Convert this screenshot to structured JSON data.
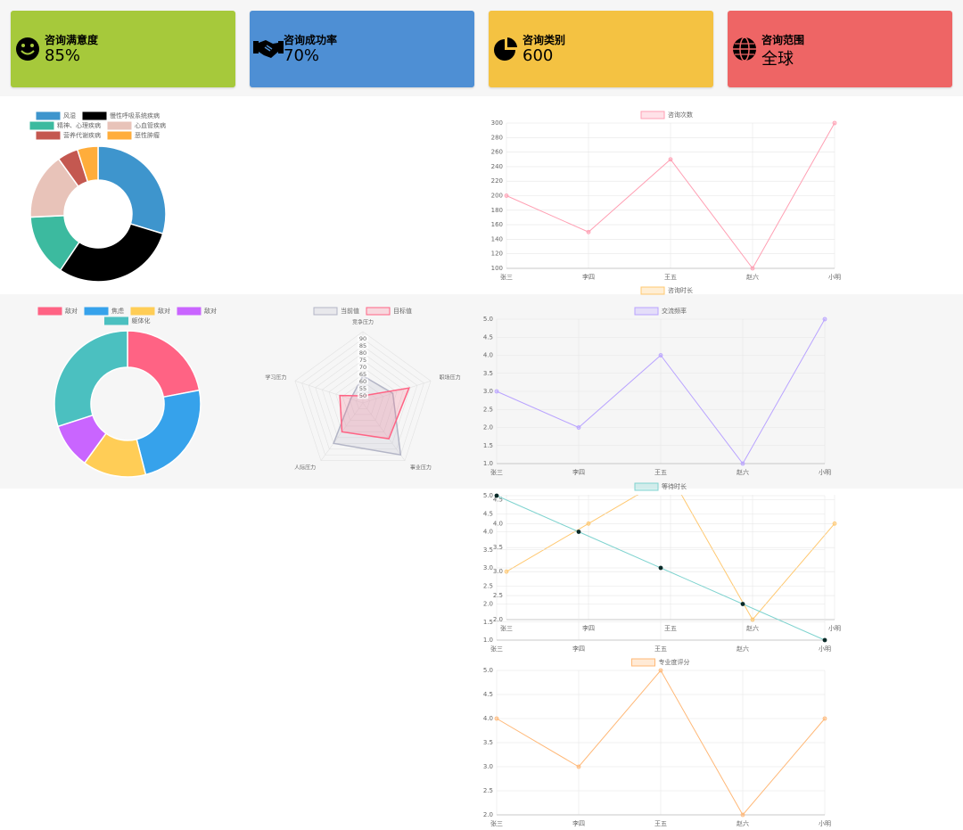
{
  "cards": [
    {
      "title": "咨询满意度",
      "value": "85%"
    },
    {
      "title": "咨询成功率",
      "value": "70%"
    },
    {
      "title": "咨询类别",
      "value": "600"
    },
    {
      "title": "咨询范围",
      "value": "全球"
    }
  ],
  "chart_data": [
    {
      "type": "donut",
      "categories": [
        "风湿",
        "慢性呼吸系统疾病",
        "精神、心理疾病",
        "心血管疾病",
        "营养代谢疾病",
        "恶性肿瘤"
      ],
      "values": [
        30,
        30,
        15,
        16,
        5,
        5
      ],
      "colors": [
        "#3e95cd",
        "#000000",
        "#3cba9f",
        "#e8c3b9",
        "#c45850",
        "#ffad3b"
      ]
    },
    {
      "type": "line",
      "categories": [
        "张三",
        "李四",
        "王五",
        "赵六",
        "小明"
      ],
      "series": [
        {
          "name": "咨询次数",
          "color": "#ff9fb3",
          "values": [
            200,
            150,
            250,
            100,
            300
          ]
        }
      ],
      "ylim": [
        100,
        300
      ],
      "yticks": [
        100,
        120,
        140,
        160,
        180,
        200,
        220,
        240,
        260,
        280,
        300
      ],
      "grid": true
    },
    {
      "type": "line",
      "categories": [
        "张三",
        "李四",
        "王五",
        "赵六",
        "小明"
      ],
      "series": [
        {
          "name": "咨询时长",
          "color": "#ffc870",
          "values": [
            3,
            4,
            5,
            2,
            4
          ]
        }
      ],
      "ylim": [
        2,
        4.6
      ],
      "yticks": [
        {
          "value": 2,
          "label": "2.0"
        },
        {
          "value": 2.5,
          "label": "2.5"
        },
        {
          "value": 3,
          "label": "3.0"
        },
        {
          "value": 3.5,
          "label": "3.5"
        },
        {
          "value": 4,
          "label": "4.0"
        },
        {
          "value": 4.5,
          "label": "4.5"
        }
      ],
      "grid": true
    },
    {
      "type": "donut",
      "categories": [
        "敌对",
        "焦虑",
        "敌对",
        "敌对",
        "躯体化"
      ],
      "values": [
        22,
        24,
        14,
        10,
        30
      ],
      "colors": [
        "#ff6384",
        "#36a2eb",
        "#ffcd56",
        "#c965ff",
        "#4bc0c0"
      ]
    },
    {
      "type": "radar",
      "axes": [
        "竞争压力",
        "职场压力",
        "事业压力",
        "人际压力",
        "学习压力"
      ],
      "series": [
        {
          "name": "当前值",
          "color": "#b3b5c6",
          "values": [
            64,
            67,
            90,
            80,
            54
          ]
        },
        {
          "name": "目标值",
          "color": "#ff6384",
          "values": [
            50,
            79,
            76,
            70,
            62
          ]
        }
      ],
      "rlim": [
        45,
        95
      ],
      "rticks": [
        50,
        55,
        60,
        65,
        70,
        75,
        80,
        85,
        90
      ]
    },
    {
      "type": "line",
      "categories": [
        "张三",
        "李四",
        "王五",
        "赵六",
        "小明"
      ],
      "series": [
        {
          "name": "交流频率",
          "color": "#b9a3ff",
          "values": [
            3,
            2,
            4,
            1,
            5
          ]
        }
      ],
      "ylim": [
        1,
        5
      ],
      "yticks": [
        {
          "value": 1,
          "label": "1.0"
        },
        {
          "value": 1.5,
          "label": "1.5"
        },
        {
          "value": 2,
          "label": "2.0"
        },
        {
          "value": 2.5,
          "label": "2.5"
        },
        {
          "value": 3,
          "label": "3.0"
        },
        {
          "value": 3.5,
          "label": "3.5"
        },
        {
          "value": 4,
          "label": "4.0"
        },
        {
          "value": 4.5,
          "label": "4.5"
        },
        {
          "value": 5,
          "label": "5.0"
        }
      ],
      "grid": true
    },
    {
      "type": "line",
      "categories": [
        "张三",
        "李四",
        "王五",
        "赵六",
        "小明"
      ],
      "series": [
        {
          "name": "等待时长",
          "color": "#7fd3cf",
          "point_color": "#0a2a28",
          "values": [
            5,
            4,
            3,
            2,
            1
          ]
        }
      ],
      "ylim": [
        1,
        5
      ],
      "yticks": [
        {
          "value": 1,
          "label": "1.0"
        },
        {
          "value": 1.5,
          "label": "1.5"
        },
        {
          "value": 2,
          "label": "2.0"
        },
        {
          "value": 2.5,
          "label": "2.5"
        },
        {
          "value": 3,
          "label": "3.0"
        },
        {
          "value": 3.5,
          "label": "3.5"
        },
        {
          "value": 4,
          "label": "4.0"
        },
        {
          "value": 4.5,
          "label": "4.5"
        },
        {
          "value": 5,
          "label": "5.0"
        }
      ],
      "grid": true
    },
    {
      "type": "line",
      "categories": [
        "张三",
        "李四",
        "王五",
        "赵六",
        "小明"
      ],
      "series": [
        {
          "name": "专业度评分",
          "color": "#ffb877",
          "values": [
            4,
            3,
            5,
            2,
            4
          ]
        }
      ],
      "ylim": [
        2,
        5
      ],
      "yticks": [
        {
          "value": 2,
          "label": "2.0"
        },
        {
          "value": 2.5,
          "label": "2.5"
        },
        {
          "value": 3,
          "label": "3.0"
        },
        {
          "value": 3.5,
          "label": "3.5"
        },
        {
          "value": 4,
          "label": "4.0"
        },
        {
          "value": 4.5,
          "label": "4.5"
        },
        {
          "value": 5,
          "label": "5.0"
        }
      ],
      "grid": true
    }
  ]
}
